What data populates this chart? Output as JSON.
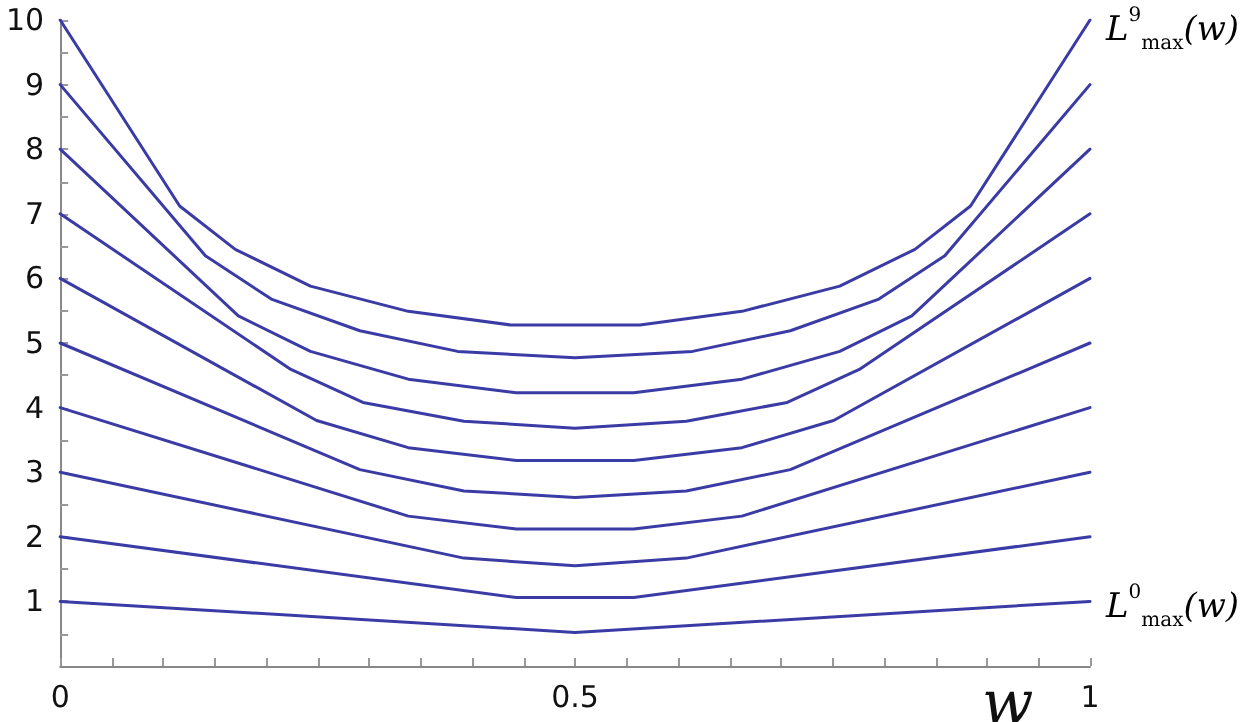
{
  "chart_data": {
    "type": "line",
    "xlabel": "w",
    "marker": "none",
    "line_style": "solid",
    "grid": false,
    "xlim": [
      0,
      1
    ],
    "ylim": [
      0,
      10
    ],
    "xticks": [
      0,
      {
        "value": 0.05,
        "label": null
      },
      {
        "value": 0.1,
        "label": null
      },
      {
        "value": 0.15,
        "label": null
      },
      {
        "value": 0.2,
        "label": null
      },
      {
        "value": 0.25,
        "label": null
      },
      {
        "value": 0.3,
        "label": null
      },
      {
        "value": 0.35,
        "label": null
      },
      {
        "value": 0.4,
        "label": null
      },
      {
        "value": 0.45,
        "label": null
      },
      0.5,
      {
        "value": 0.55,
        "label": null
      },
      {
        "value": 0.6,
        "label": null
      },
      {
        "value": 0.65,
        "label": null
      },
      {
        "value": 0.7,
        "label": null
      },
      {
        "value": 0.75,
        "label": null
      },
      {
        "value": 0.8,
        "label": null
      },
      {
        "value": 0.85,
        "label": null
      },
      {
        "value": 0.9,
        "label": null
      },
      {
        "value": 0.95,
        "label": null
      },
      1
    ],
    "yticks": [
      {
        "value": 0.5,
        "label": null
      },
      1,
      {
        "value": 1.5,
        "label": null
      },
      2,
      {
        "value": 2.5,
        "label": null
      },
      3,
      {
        "value": 3.5,
        "label": null
      },
      4,
      {
        "value": 4.5,
        "label": null
      },
      5,
      {
        "value": 5.5,
        "label": null
      },
      6,
      {
        "value": 6.5,
        "label": null
      },
      7,
      {
        "value": 7.5,
        "label": null
      },
      8,
      {
        "value": 8.5,
        "label": null
      },
      9,
      {
        "value": 9.5,
        "label": null
      },
      10
    ],
    "series": [
      {
        "color": "#3b3ba6",
        "x": [
          0,
          0.5,
          1
        ],
        "values": [
          1,
          0.52,
          1
        ]
      },
      {
        "color": "#3b3ba6",
        "x": [
          0,
          0.443,
          0.557,
          1
        ],
        "values": [
          2,
          1.06,
          1.06,
          2
        ]
      },
      {
        "color": "#3b3ba6",
        "x": [
          0,
          0.392,
          0.5,
          0.608,
          1
        ],
        "values": [
          3,
          1.67,
          1.55,
          1.67,
          3
        ]
      },
      {
        "color": "#3b3ba6",
        "x": [
          0,
          0.338,
          0.443,
          0.557,
          0.662,
          1
        ],
        "values": [
          4,
          2.32,
          2.12,
          2.12,
          2.32,
          4
        ]
      },
      {
        "color": "#3b3ba6",
        "x": [
          0,
          0.291,
          0.392,
          0.5,
          0.608,
          0.709,
          1
        ],
        "values": [
          5,
          3.04,
          2.71,
          2.61,
          2.71,
          3.04,
          5
        ]
      },
      {
        "color": "#3b3ba6",
        "x": [
          0,
          0.249,
          0.338,
          0.443,
          0.557,
          0.662,
          0.751,
          1
        ],
        "values": [
          6,
          3.8,
          3.38,
          3.18,
          3.18,
          3.38,
          3.8,
          6
        ]
      },
      {
        "color": "#3b3ba6",
        "x": [
          0,
          0.224,
          0.294,
          0.392,
          0.5,
          0.608,
          0.706,
          0.776,
          1
        ],
        "values": [
          7,
          4.59,
          4.08,
          3.79,
          3.68,
          3.79,
          4.08,
          4.59,
          7
        ]
      },
      {
        "color": "#3b3ba6",
        "x": [
          0,
          0.173,
          0.243,
          0.338,
          0.443,
          0.557,
          0.662,
          0.757,
          0.827,
          1
        ],
        "values": [
          8,
          5.42,
          4.87,
          4.44,
          4.23,
          4.23,
          4.44,
          4.87,
          5.42,
          8
        ]
      },
      {
        "color": "#3b3ba6",
        "x": [
          0,
          0.141,
          0.205,
          0.291,
          0.386,
          0.5,
          0.614,
          0.709,
          0.795,
          0.859,
          1
        ],
        "values": [
          9,
          6.35,
          5.68,
          5.19,
          4.87,
          4.77,
          4.87,
          5.19,
          5.68,
          6.35,
          9
        ]
      },
      {
        "color": "#3b3ba6",
        "x": [
          0,
          0.116,
          0.17,
          0.243,
          0.338,
          0.437,
          0.563,
          0.662,
          0.757,
          0.83,
          0.884,
          1
        ],
        "values": [
          10,
          7.12,
          6.45,
          5.88,
          5.49,
          5.28,
          5.28,
          5.49,
          5.88,
          6.45,
          7.12,
          10
        ]
      }
    ],
    "annotations": [
      {
        "text": "L$^{9}$$_{max}$(w)",
        "x": 1,
        "y": 10
      },
      {
        "text": "L$^{0}$$_{max}$(w)",
        "x": 1,
        "y": 1
      }
    ]
  }
}
